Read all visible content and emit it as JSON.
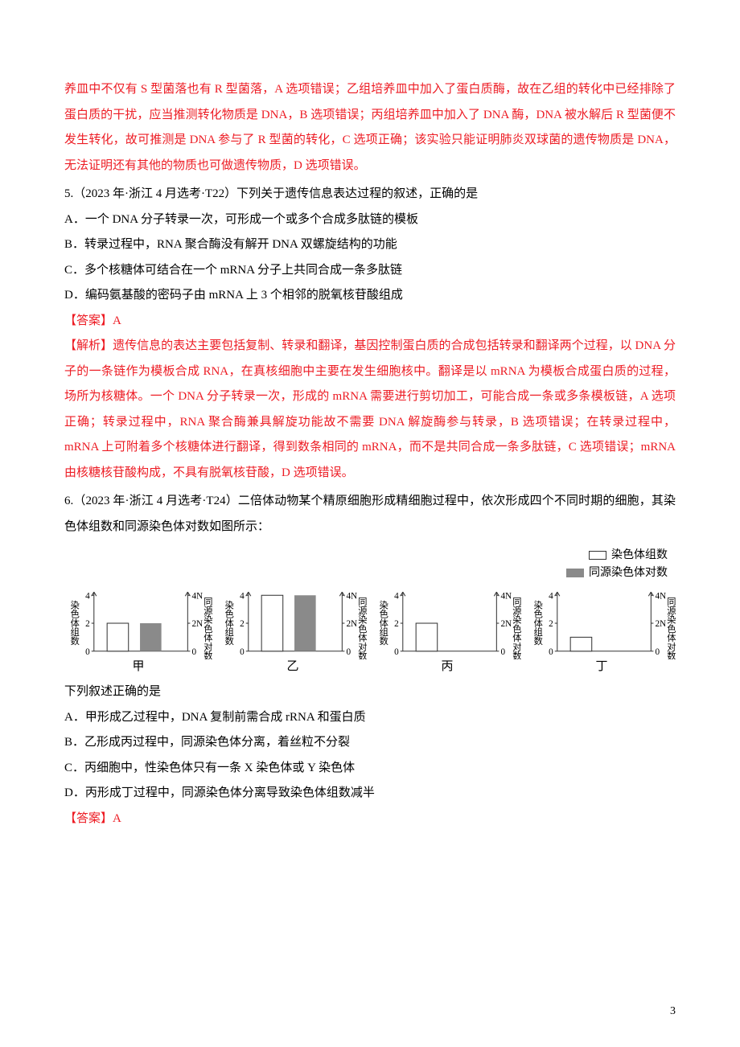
{
  "text_color": "#000000",
  "accent_color": "#ed1c24",
  "page_number": "3",
  "prev_answer_tail": "养皿中不仅有 S 型菌落也有 R 型菌落，A 选项错误；乙组培养皿中加入了蛋白质酶，故在乙组的转化中已经排除了蛋白质的干扰，应当推测转化物质是 DNA，B 选项错误；丙组培养皿中加入了 DNA 酶，DNA 被水解后 R 型菌便不发生转化，故可推测是 DNA 参与了 R 型菌的转化，C 选项正确；该实验只能证明肺炎双球菌的遗传物质是 DNA，无法证明还有其他的物质也可做遗传物质，D 选项错误。",
  "q5": {
    "stem": "5.（2023 年·浙江 4 月选考·T22）下列关于遗传信息表达过程的叙述，正确的是",
    "A": "A．一个 DNA 分子转录一次，可形成一个或多个合成多肽链的模板",
    "B": "B．转录过程中，RNA 聚合酶没有解开 DNA 双螺旋结构的功能",
    "C": "C．多个核糖体可结合在一个 mRNA 分子上共同合成一条多肽链",
    "D": "D．编码氨基酸的密码子由 mRNA 上 3 个相邻的脱氧核苷酸组成",
    "answer_label": "【答案】A",
    "explain": "【解析】遗传信息的表达主要包括复制、转录和翻译，基因控制蛋白质的合成包括转录和翻译两个过程，以 DNA 分子的一条链作为模板合成 RNA，在真核细胞中主要在发生细胞核中。翻译是以 mRNA 为模板合成蛋白质的过程，场所为核糖体。一个 DNA 分子转录一次，形成的 mRNA 需要进行剪切加工，可能合成一条或多条模板链，A 选项正确；转录过程中，RNA 聚合酶兼具解旋功能故不需要 DNA 解旋酶参与转录，B 选项错误；在转录过程中，mRNA 上可附着多个核糖体进行翻译，得到数条相同的 mRNA，而不是共同合成一条多肽链，C 选项错误；mRNA 由核糖核苷酸构成，不具有脱氧核苷酸，D 选项错误。"
  },
  "q6": {
    "stem": "6.（2023 年·浙江 4 月选考·T24）二倍体动物某个精原细胞形成精细胞过程中，依次形成四个不同时期的细胞，其染色体组数和同源染色体对数如图所示：",
    "legend1": "染色体组数",
    "legend2": "同源染色体对数",
    "post_chart": "下列叙述正确的是",
    "A": "A．甲形成乙过程中，DNA 复制前需合成 rRNA 和蛋白质",
    "B": "B．乙形成丙过程中，同源染色体分离，着丝粒不分裂",
    "C": "C．丙细胞中，性染色体只有一条 X 染色体或 Y 染色体",
    "D": "D．丙形成丁过程中，同源染色体分离导致染色体组数减半",
    "answer_label": "【答案】A"
  },
  "chart": {
    "type": "bar",
    "y_left_label": "染色体组数",
    "y_right_label": "同源染色体对数",
    "left_ticks": [
      0,
      2,
      4
    ],
    "right_ticks": [
      "0",
      "2N",
      "4N"
    ],
    "bar_open_color": "#ffffff",
    "bar_open_border": "#333333",
    "bar_fill_color": "#8a8a8a",
    "axis_color": "#333333",
    "y_max": 4,
    "panels": [
      {
        "label": "甲",
        "open_val": 2,
        "fill_val": 2
      },
      {
        "label": "乙",
        "open_val": 4,
        "fill_val": 4
      },
      {
        "label": "丙",
        "open_val": 2,
        "fill_val": 0
      },
      {
        "label": "丁",
        "open_val": 1,
        "fill_val": 0
      }
    ]
  }
}
